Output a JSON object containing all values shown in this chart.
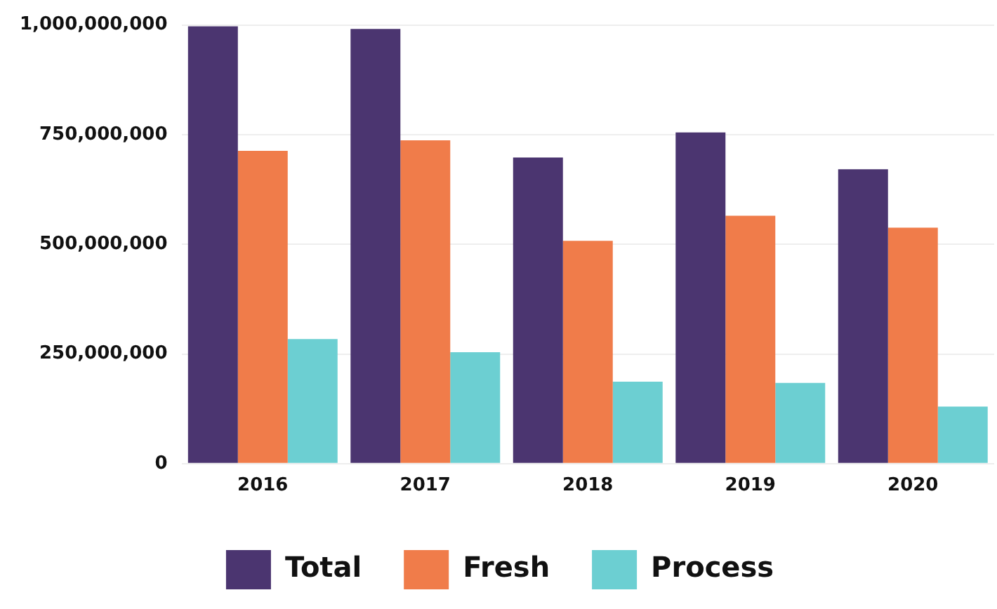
{
  "chart_data": {
    "type": "bar",
    "categories": [
      "2016",
      "2017",
      "2018",
      "2019",
      "2020"
    ],
    "series": [
      {
        "name": "Total",
        "color": "#4b3570",
        "values": [
          997000000,
          991000000,
          698000000,
          755000000,
          671000000
        ]
      },
      {
        "name": "Fresh",
        "color": "#f07c4a",
        "values": [
          713000000,
          737000000,
          508000000,
          565000000,
          538000000
        ]
      },
      {
        "name": "Process",
        "color": "#6ccfd2",
        "values": [
          284000000,
          254000000,
          187000000,
          184000000,
          130000000
        ]
      }
    ],
    "ylim": [
      0,
      1000000000
    ],
    "yticks": [
      0,
      {
        "value": 250000000,
        "label": "250,000,000"
      },
      {
        "value": 500000000,
        "label": "500,000,000"
      },
      {
        "value": 750000000,
        "label": "750,000,000"
      },
      {
        "value": 1000000000,
        "label": "1,000,000,000"
      }
    ],
    "grid": "y",
    "legend": "bottom"
  }
}
